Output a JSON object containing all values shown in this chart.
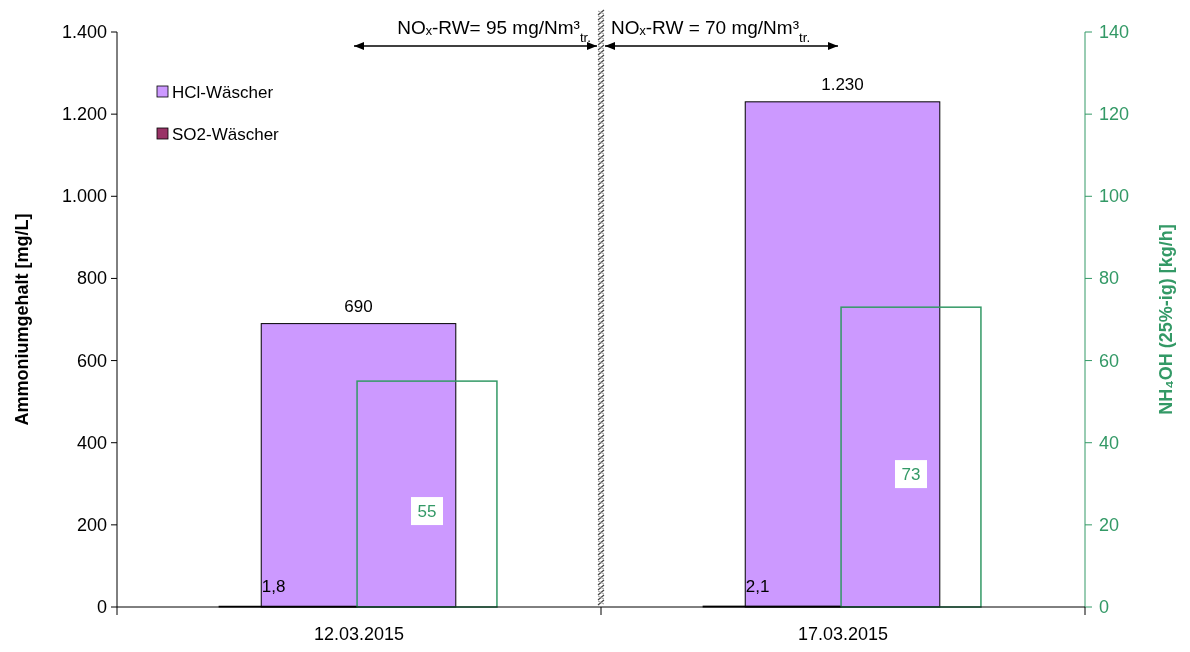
{
  "chart_data": {
    "type": "bar",
    "categories": [
      "12.03.2015",
      "17.03.2015"
    ],
    "ylabel": "Ammoniumgehalt [mg/L]",
    "y2label": "NH₄OH  (25%-ig) [kg/h]",
    "ylim": [
      0,
      1400
    ],
    "yticks": [
      0,
      200,
      400,
      600,
      800,
      {
        "value": 1000,
        "label": "1.000"
      },
      {
        "value": 1200,
        "label": "1.200"
      },
      {
        "value": 1400,
        "label": "1.400"
      }
    ],
    "y2lim": [
      0,
      140
    ],
    "y2ticks": [
      0,
      20,
      40,
      60,
      80,
      100,
      120,
      140
    ],
    "series": [
      {
        "name": "HCl-Wäscher",
        "color": "#cc99ff",
        "values": [
          690,
          1230
        ],
        "value_labels": [
          "690",
          "1.230"
        ]
      },
      {
        "name": "SO2-Wäscher",
        "color": "#993366",
        "values": [
          1.8,
          2.1
        ],
        "value_labels": [
          "1,8",
          "2,1"
        ]
      },
      {
        "color": "#339966",
        "axis": "y2",
        "values": [
          55,
          73
        ],
        "value_labels": [
          "55",
          "73"
        ]
      }
    ],
    "annotations": [
      "NOₓ-RW= 95 mg/Nm³$_{tr.}$",
      "NOₓ-RW = 70 mg/Nm³$_{tr.}$"
    ],
    "legend": "top left",
    "grid": false
  }
}
